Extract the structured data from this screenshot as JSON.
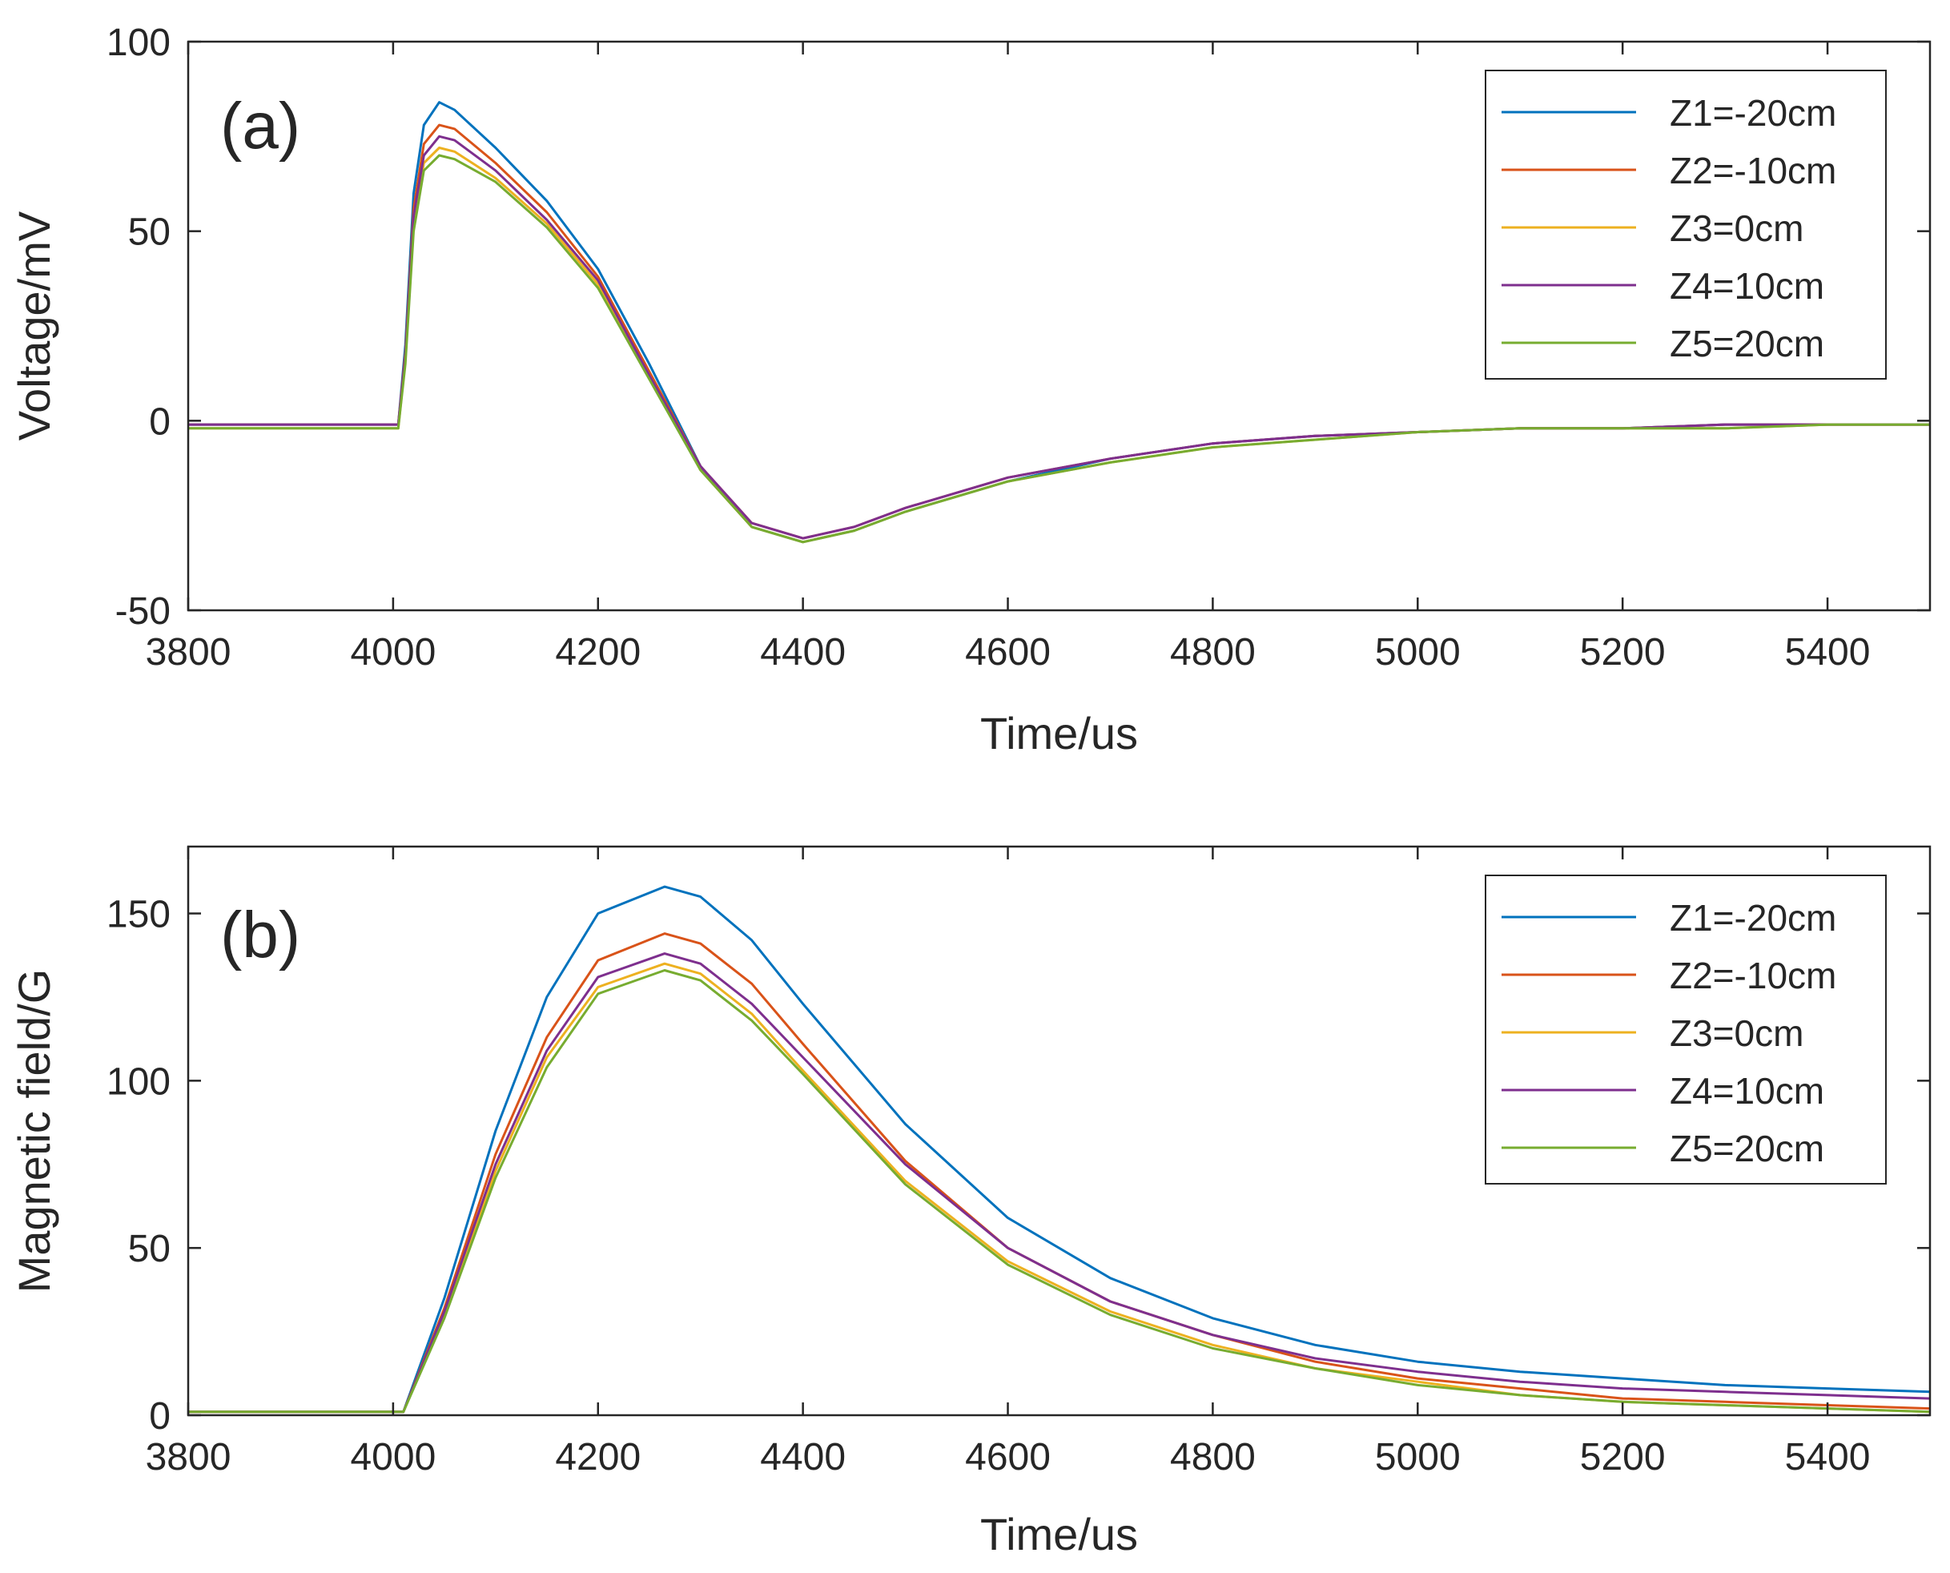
{
  "chart_data": [
    {
      "type": "line",
      "panel_label": "(a)",
      "xlabel": "Time/us",
      "ylabel": "Voltage/mV",
      "xlim": [
        3800,
        5500
      ],
      "ylim": [
        -50,
        100
      ],
      "xticks": [
        3800,
        4000,
        4200,
        4400,
        4600,
        4800,
        5000,
        5200,
        5400
      ],
      "yticks": [
        -50,
        0,
        50,
        100
      ],
      "legend_position": "top-right",
      "series": [
        {
          "name": "Z1=-20cm",
          "color": "#0072BD",
          "x": [
            3800,
            4005,
            4012,
            4020,
            4030,
            4045,
            4060,
            4100,
            4150,
            4200,
            4250,
            4300,
            4350,
            4400,
            4450,
            4500,
            4600,
            4700,
            4800,
            4900,
            5000,
            5100,
            5200,
            5300,
            5400,
            5500
          ],
          "y": [
            -1,
            -1,
            20,
            60,
            78,
            84,
            82,
            72,
            58,
            40,
            15,
            -12,
            -28,
            -32,
            -29,
            -24,
            -16,
            -10,
            -6,
            -4,
            -3,
            -2,
            -2,
            -1,
            -1,
            -1
          ]
        },
        {
          "name": "Z2=-10cm",
          "color": "#D95319",
          "x": [
            3800,
            4005,
            4012,
            4020,
            4030,
            4045,
            4060,
            4100,
            4150,
            4200,
            4250,
            4300,
            4350,
            4400,
            4450,
            4500,
            4600,
            4700,
            4800,
            4900,
            5000,
            5100,
            5200,
            5300,
            5400,
            5500
          ],
          "y": [
            -1,
            -1,
            18,
            56,
            73,
            78,
            77,
            68,
            55,
            38,
            13,
            -12,
            -27,
            -31,
            -28,
            -23,
            -15,
            -10,
            -6,
            -4,
            -3,
            -2,
            -2,
            -1,
            -1,
            -1
          ]
        },
        {
          "name": "Z3=0cm",
          "color": "#EDB120",
          "x": [
            3800,
            4005,
            4012,
            4020,
            4030,
            4045,
            4060,
            4100,
            4150,
            4200,
            4250,
            4300,
            4350,
            4400,
            4450,
            4500,
            4600,
            4700,
            4800,
            4900,
            5000,
            5100,
            5200,
            5300,
            5400,
            5500
          ],
          "y": [
            -2,
            -2,
            16,
            52,
            68,
            72,
            71,
            64,
            52,
            36,
            12,
            -13,
            -28,
            -32,
            -29,
            -24,
            -16,
            -11,
            -7,
            -5,
            -3,
            -2,
            -2,
            -2,
            -1,
            -1
          ]
        },
        {
          "name": "Z4=10cm",
          "color": "#7E2F8E",
          "x": [
            3800,
            4005,
            4012,
            4020,
            4030,
            4045,
            4060,
            4100,
            4150,
            4200,
            4250,
            4300,
            4350,
            4400,
            4450,
            4500,
            4600,
            4700,
            4800,
            4900,
            5000,
            5100,
            5200,
            5300,
            5400,
            5500
          ],
          "y": [
            -1,
            -1,
            17,
            54,
            70,
            75,
            74,
            66,
            53,
            37,
            12,
            -12,
            -27,
            -31,
            -28,
            -23,
            -15,
            -10,
            -6,
            -4,
            -3,
            -2,
            -2,
            -1,
            -1,
            -1
          ]
        },
        {
          "name": "Z5=20cm",
          "color": "#77AC30",
          "x": [
            3800,
            4005,
            4012,
            4020,
            4030,
            4045,
            4060,
            4100,
            4150,
            4200,
            4250,
            4300,
            4350,
            4400,
            4450,
            4500,
            4600,
            4700,
            4800,
            4900,
            5000,
            5100,
            5200,
            5300,
            5400,
            5500
          ],
          "y": [
            -2,
            -2,
            15,
            50,
            66,
            70,
            69,
            63,
            51,
            35,
            11,
            -13,
            -28,
            -32,
            -29,
            -24,
            -16,
            -11,
            -7,
            -5,
            -3,
            -2,
            -2,
            -2,
            -1,
            -1
          ]
        }
      ]
    },
    {
      "type": "line",
      "panel_label": "(b)",
      "xlabel": "Time/us",
      "ylabel": "Magnetic field/G",
      "xlim": [
        3800,
        5500
      ],
      "ylim": [
        0,
        170
      ],
      "xticks": [
        3800,
        4000,
        4200,
        4400,
        4600,
        4800,
        5000,
        5200,
        5400
      ],
      "yticks": [
        0,
        50,
        100,
        150
      ],
      "legend_position": "top-right",
      "series": [
        {
          "name": "Z1=-20cm",
          "color": "#0072BD",
          "x": [
            3800,
            4000,
            4010,
            4050,
            4100,
            4150,
            4200,
            4265,
            4300,
            4350,
            4400,
            4500,
            4600,
            4700,
            4800,
            4900,
            5000,
            5100,
            5200,
            5300,
            5400,
            5500
          ],
          "y": [
            1,
            1,
            1,
            35,
            85,
            125,
            150,
            158,
            155,
            142,
            123,
            87,
            59,
            41,
            29,
            21,
            16,
            13,
            11,
            9,
            8,
            7
          ]
        },
        {
          "name": "Z2=-10cm",
          "color": "#D95319",
          "x": [
            3800,
            4000,
            4010,
            4050,
            4100,
            4150,
            4200,
            4265,
            4300,
            4350,
            4400,
            4500,
            4600,
            4700,
            4800,
            4900,
            5000,
            5100,
            5200,
            5300,
            5400,
            5500
          ],
          "y": [
            1,
            1,
            1,
            32,
            78,
            113,
            136,
            144,
            141,
            129,
            111,
            76,
            50,
            34,
            24,
            16,
            11,
            8,
            5,
            4,
            3,
            2
          ]
        },
        {
          "name": "Z3=0cm",
          "color": "#EDB120",
          "x": [
            3800,
            4000,
            4010,
            4050,
            4100,
            4150,
            4200,
            4265,
            4300,
            4350,
            4400,
            4500,
            4600,
            4700,
            4800,
            4900,
            5000,
            5100,
            5200,
            5300,
            5400,
            5500
          ],
          "y": [
            1,
            1,
            1,
            30,
            73,
            107,
            128,
            135,
            132,
            120,
            103,
            70,
            46,
            31,
            21,
            14,
            10,
            6,
            4,
            3,
            2,
            1
          ]
        },
        {
          "name": "Z4=10cm",
          "color": "#7E2F8E",
          "x": [
            3800,
            4000,
            4010,
            4050,
            4100,
            4150,
            4200,
            4265,
            4300,
            4350,
            4400,
            4500,
            4600,
            4700,
            4800,
            4900,
            5000,
            5100,
            5200,
            5300,
            5400,
            5500
          ],
          "y": [
            1,
            1,
            1,
            31,
            75,
            109,
            131,
            138,
            135,
            123,
            107,
            75,
            50,
            34,
            24,
            17,
            13,
            10,
            8,
            7,
            6,
            5
          ]
        },
        {
          "name": "Z5=20cm",
          "color": "#77AC30",
          "x": [
            3800,
            4000,
            4010,
            4050,
            4100,
            4150,
            4200,
            4265,
            4300,
            4350,
            4400,
            4500,
            4600,
            4700,
            4800,
            4900,
            5000,
            5100,
            5200,
            5300,
            5400,
            5500
          ],
          "y": [
            1,
            1,
            1,
            29,
            71,
            104,
            126,
            133,
            130,
            118,
            102,
            69,
            45,
            30,
            20,
            14,
            9,
            6,
            4,
            3,
            2,
            1
          ]
        }
      ]
    }
  ]
}
